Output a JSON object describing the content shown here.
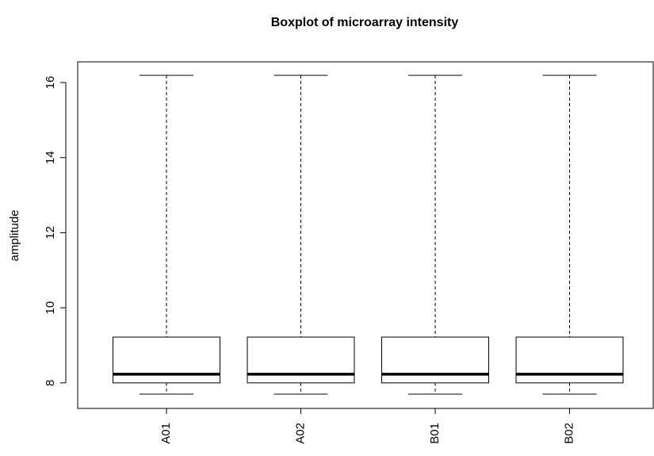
{
  "chart_data": {
    "type": "boxplot",
    "title": "Boxplot of microarray intensity",
    "y_label": "amplitude",
    "categories": [
      "A01",
      "A02",
      "B01",
      "B02"
    ],
    "boxes": [
      {
        "whisker_low": 7.7,
        "q1": 8.0,
        "median": 8.23,
        "q3": 9.22,
        "whisker_high": 16.19
      },
      {
        "whisker_low": 7.7,
        "q1": 8.0,
        "median": 8.23,
        "q3": 9.22,
        "whisker_high": 16.19
      },
      {
        "whisker_low": 7.7,
        "q1": 8.0,
        "median": 8.23,
        "q3": 9.22,
        "whisker_high": 16.19
      },
      {
        "whisker_low": 7.7,
        "q1": 8.0,
        "median": 8.23,
        "q3": 9.22,
        "whisker_high": 16.19
      }
    ],
    "color": "#000000",
    "ylim": [
      7.32,
      16.55
    ],
    "yticks": [
      8,
      10,
      12,
      14,
      16
    ]
  }
}
